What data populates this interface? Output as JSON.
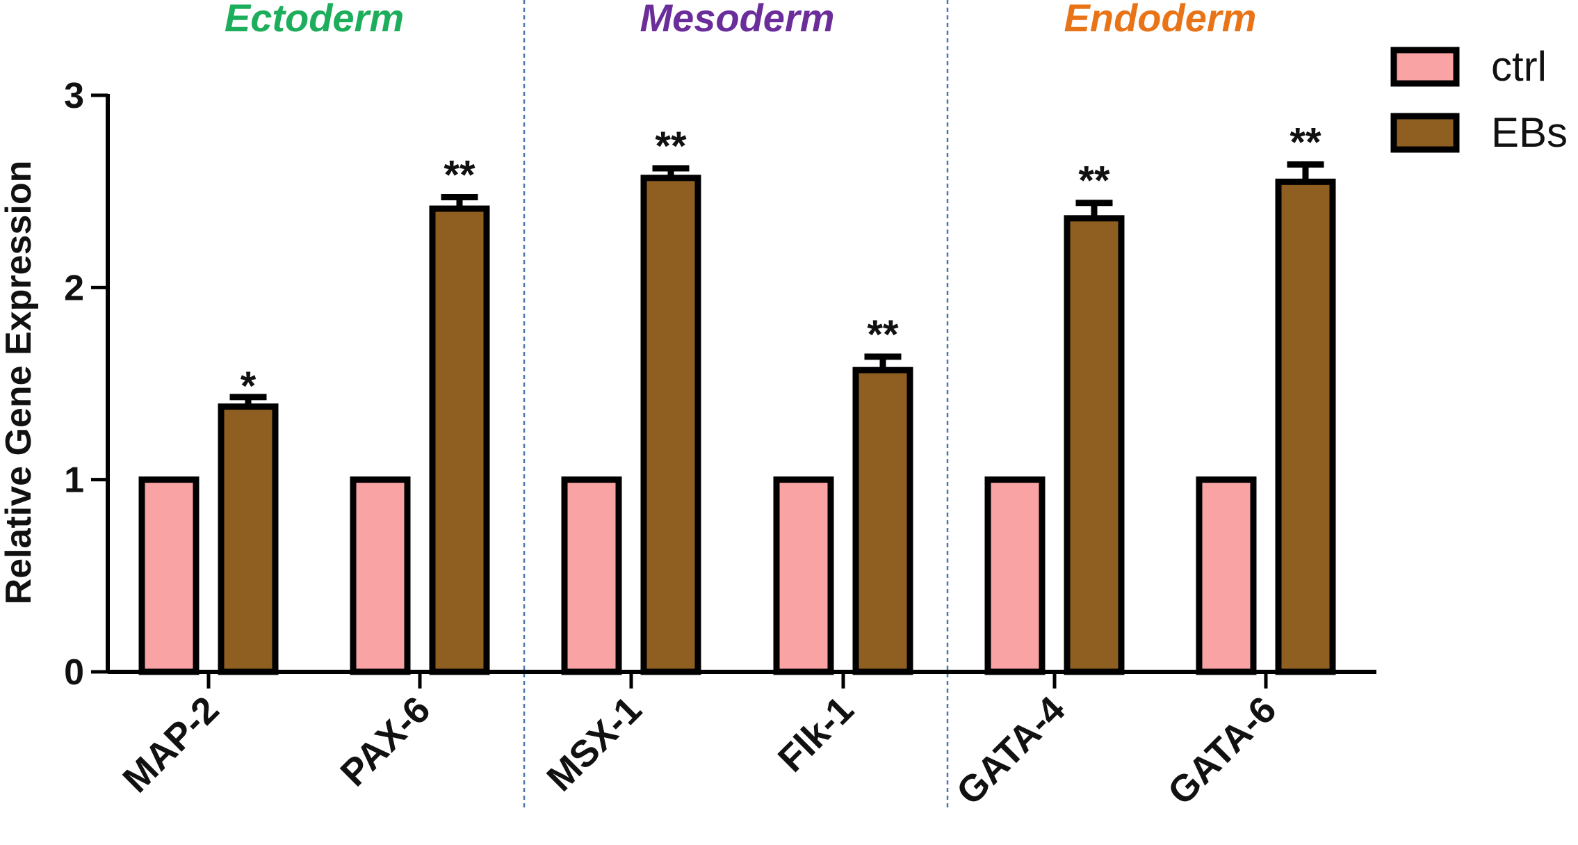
{
  "chart_data": {
    "type": "bar",
    "title": "",
    "xlabel": "",
    "ylabel": "Relative Gene Expression",
    "ylim": [
      0,
      3
    ],
    "yticks": [
      0,
      1,
      2,
      3
    ],
    "categories": [
      "MAP-2",
      "PAX-6",
      "MSX-1",
      "Flk-1",
      "GATA-4",
      "GATA-6"
    ],
    "series": [
      {
        "name": "ctrl",
        "color": "#F9A3A4",
        "values": [
          1,
          1,
          1,
          1,
          1,
          1
        ]
      },
      {
        "name": "EBs",
        "color": "#8F5F22",
        "values": [
          1.38,
          2.41,
          2.57,
          1.57,
          2.36,
          2.55
        ],
        "errors": [
          0.05,
          0.06,
          0.05,
          0.07,
          0.08,
          0.09
        ]
      }
    ],
    "significance": [
      "*",
      "**",
      "**",
      "**",
      "**",
      "**"
    ],
    "groups": [
      {
        "label": "Ectoderm",
        "color": "#1DAE5B",
        "categories": [
          "MAP-2",
          "PAX-6"
        ]
      },
      {
        "label": "Mesoderm",
        "color": "#6A2D9A",
        "categories": [
          "MSX-1",
          "Flk-1"
        ]
      },
      {
        "label": "Endoderm",
        "color": "#E97418",
        "categories": [
          "GATA-4",
          "GATA-6"
        ]
      }
    ],
    "legend": {
      "position": "top-right",
      "entries": [
        "ctrl",
        "EBs"
      ]
    },
    "grid": false
  }
}
